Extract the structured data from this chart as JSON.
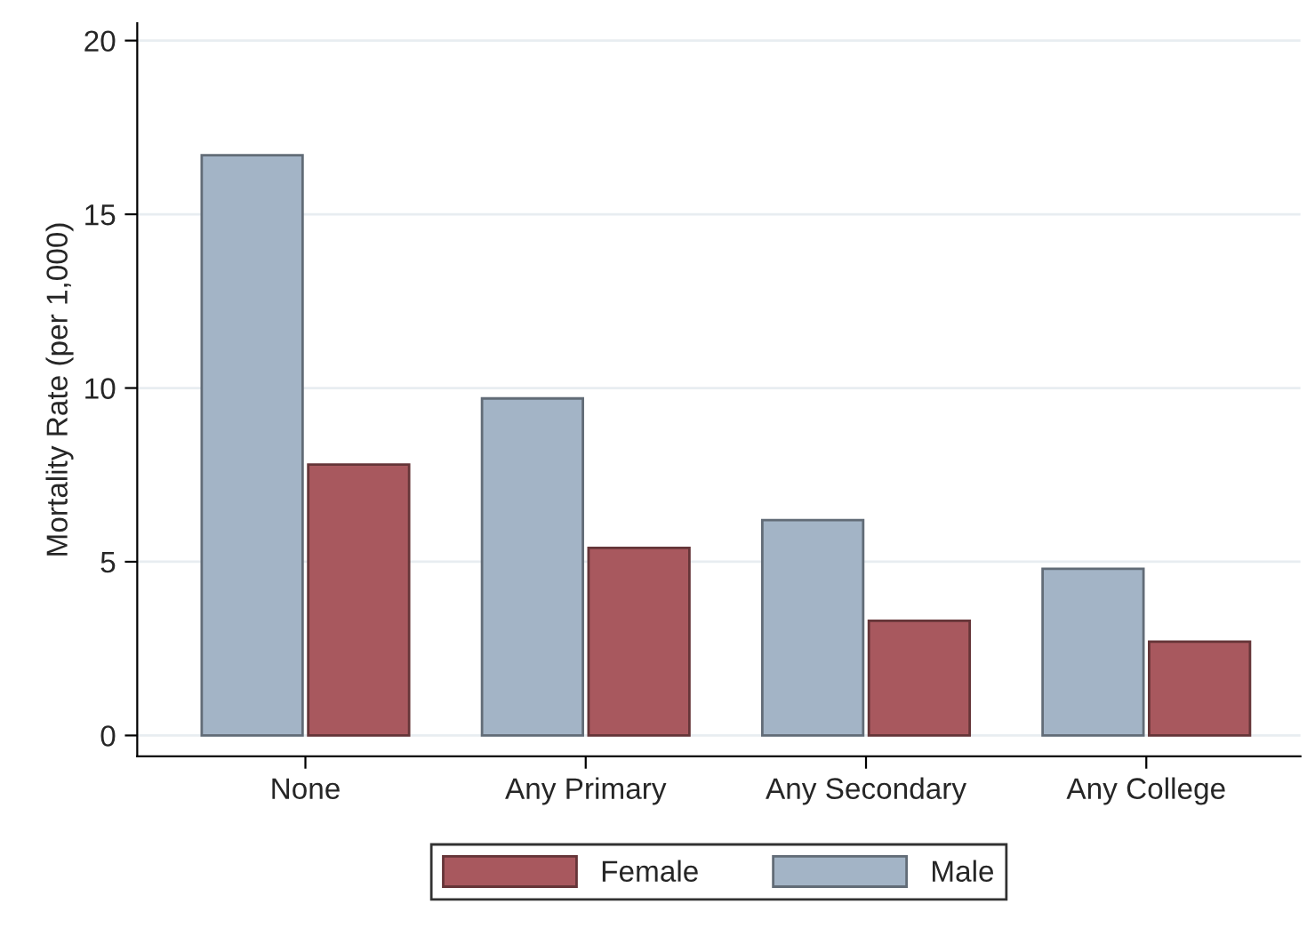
{
  "chart_data": {
    "type": "bar",
    "ylabel": "Mortality Rate (per 1,000)",
    "categories": [
      "None",
      "Any Primary",
      "Any Secondary",
      "Any College"
    ],
    "series": [
      {
        "name": "Male",
        "color": "#a3b4c6",
        "values": [
          16.7,
          9.7,
          6.2,
          4.8
        ]
      },
      {
        "name": "Female",
        "color": "#a8585e",
        "values": [
          7.8,
          5.4,
          3.3,
          2.7
        ]
      }
    ],
    "ylim": [
      -0.6,
      20.5
    ],
    "yticks": [
      0,
      5,
      10,
      15,
      20
    ],
    "grid": "y",
    "legend": "bottom"
  }
}
